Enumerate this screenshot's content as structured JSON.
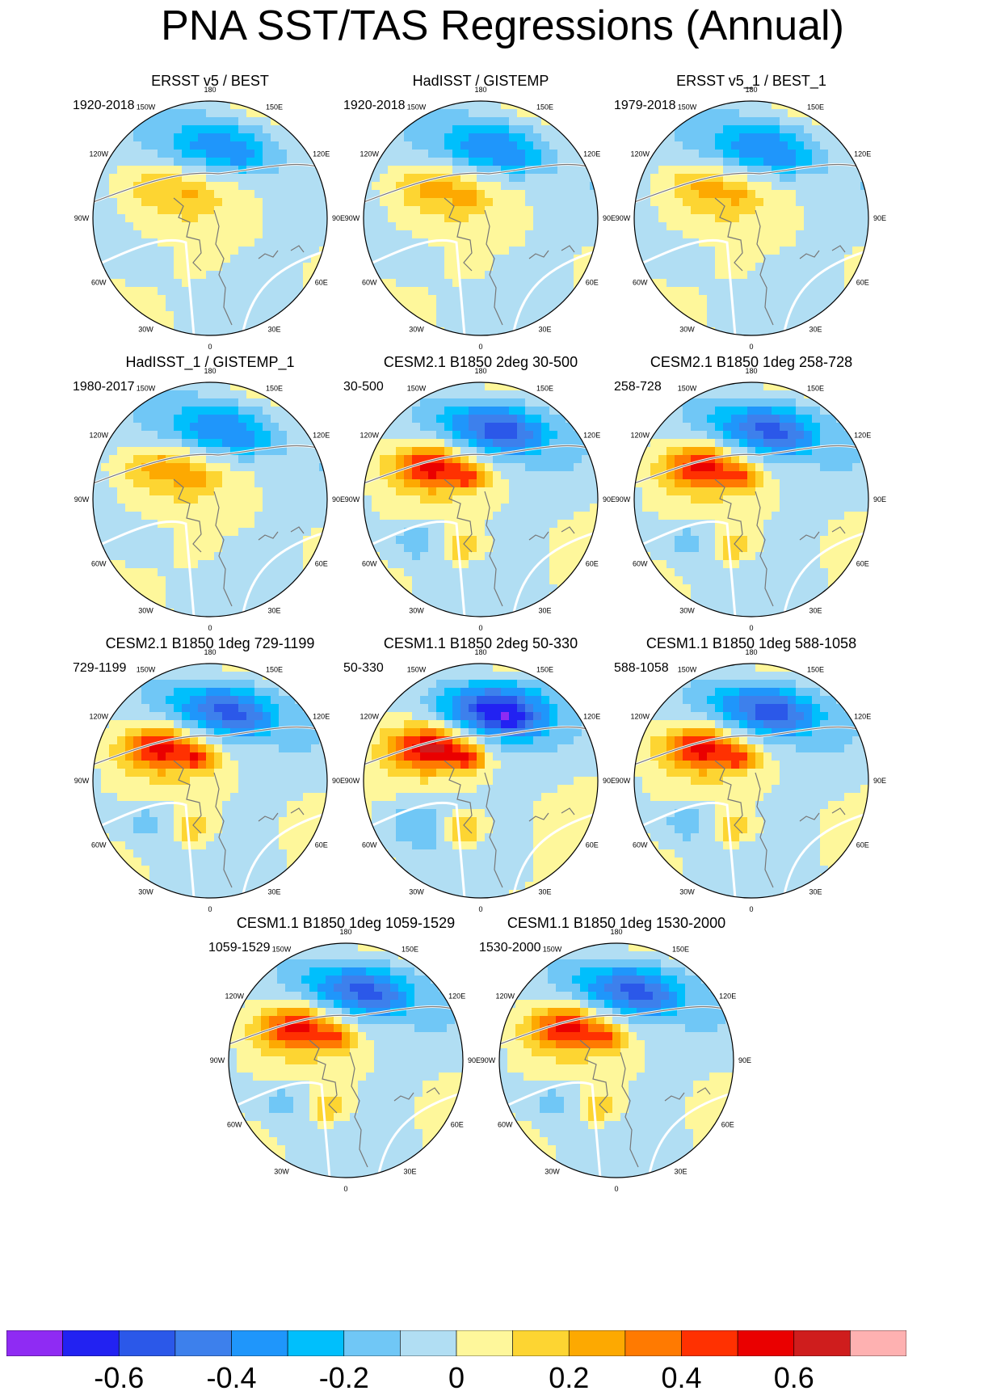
{
  "title": "PNA SST/TAS Regressions (Annual)",
  "colors": {
    "bins": [
      "#8f2bf3",
      "#2222f2",
      "#2b58e9",
      "#3d80ec",
      "#1f96fb",
      "#00bffc",
      "#70c7f6",
      "#b1def3",
      "#fef79b",
      "#fdd532",
      "#fda901",
      "#ff7a01",
      "#ff3101",
      "#ea0000",
      "#cf1d1d",
      "#feb1b1"
    ],
    "land_outline": "#777777",
    "ocean_border": "#ffffff"
  },
  "chart_data": {
    "type": "heatmap",
    "projection": "north polar stereographic",
    "colorbar": {
      "levels": [
        -0.7,
        -0.6,
        -0.5,
        -0.4,
        -0.3,
        -0.2,
        -0.1,
        0,
        0.1,
        0.2,
        0.3,
        0.4,
        0.5,
        0.6,
        0.7
      ],
      "tick_labels": [
        "-0.6",
        "-0.4",
        "-0.2",
        "0",
        "0.2",
        "0.4",
        "0.6"
      ],
      "tick_values": [
        -0.6,
        -0.4,
        -0.2,
        0,
        0.2,
        0.4,
        0.6
      ]
    },
    "lon_labels": [
      "180",
      "150E",
      "120E",
      "90E",
      "60E",
      "30E",
      "0",
      "30W",
      "60W",
      "90W",
      "120W",
      "150W"
    ],
    "panels": [
      {
        "title": "ERSST v5 / BEST",
        "subtitle": "1920-2018",
        "amp": 0.36,
        "warm_amp": 0.15
      },
      {
        "title": "HadISST / GISTEMP",
        "subtitle": "1920-2018",
        "amp": 0.38,
        "warm_amp": 0.2
      },
      {
        "title": "ERSST v5_1 / BEST_1",
        "subtitle": "1979-2018",
        "amp": 0.38,
        "warm_amp": 0.18
      },
      {
        "title": "HadISST_1 / GISTEMP_1",
        "subtitle": "1980-2017",
        "amp": 0.38,
        "warm_amp": 0.22
      },
      {
        "title": "CESM2.1 B1850 2deg 30-500",
        "subtitle": "30-500",
        "amp": 0.52,
        "warm_amp": 0.5
      },
      {
        "title": "CESM2.1 B1850 1deg 258-728",
        "subtitle": "258-728",
        "amp": 0.5,
        "warm_amp": 0.48
      },
      {
        "title": "CESM2.1 B1850 1deg 729-1199",
        "subtitle": "729-1199",
        "amp": 0.5,
        "warm_amp": 0.5
      },
      {
        "title": "CESM1.1 B1850 2deg 50-330",
        "subtitle": "50-330",
        "amp": 0.62,
        "warm_amp": 0.58
      },
      {
        "title": "CESM1.1 B1850 1deg 588-1058",
        "subtitle": "588-1058",
        "amp": 0.52,
        "warm_amp": 0.5
      },
      {
        "title": "CESM1.1 B1850 1deg 1059-1529",
        "subtitle": "1059-1529",
        "amp": 0.5,
        "warm_amp": 0.48
      },
      {
        "title": "CESM1.1 B1850 1deg 1530-2000",
        "subtitle": "1530-2000",
        "amp": 0.5,
        "warm_amp": 0.48
      }
    ]
  }
}
